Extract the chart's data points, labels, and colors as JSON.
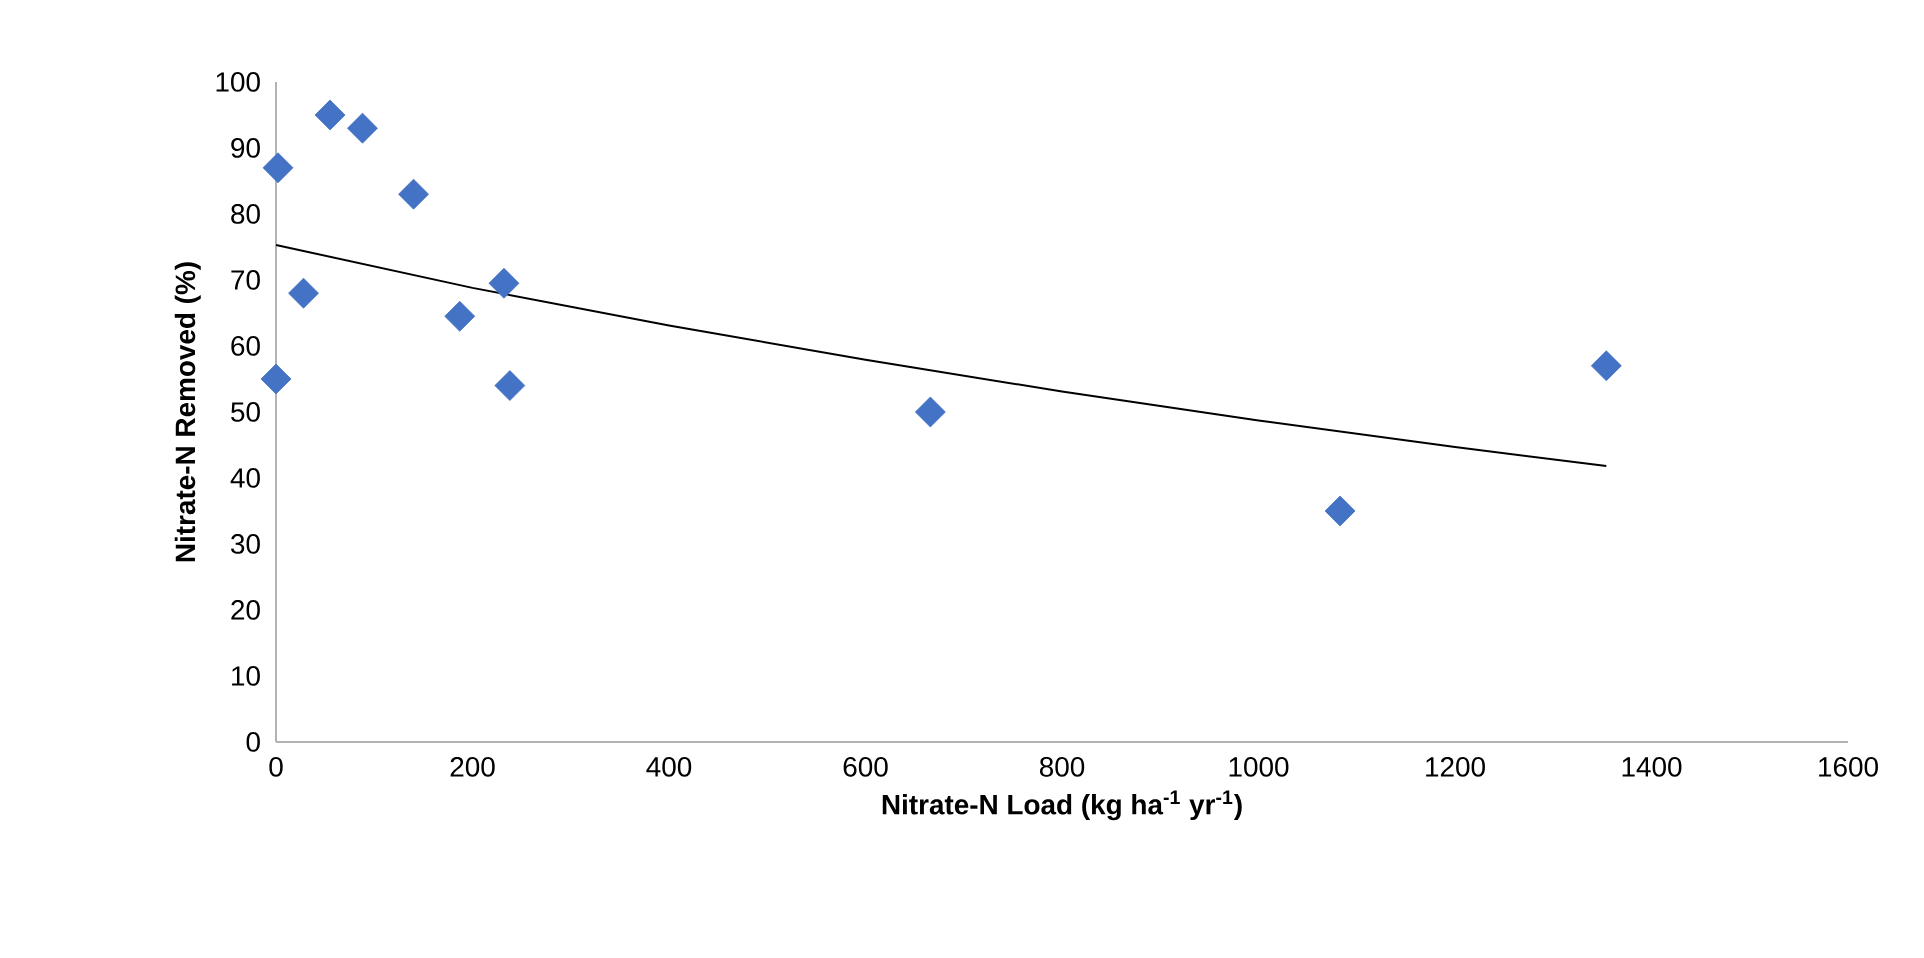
{
  "chart_data": {
    "type": "scatter",
    "xlabel": "Nitrate-N Load (kg ha$^{-1}$ yr$^{-1}$)",
    "ylabel": "Nitrate-N Removed (%)",
    "xlim": [
      0,
      1600
    ],
    "xticks": [
      0,
      200,
      400,
      600,
      800,
      1000,
      1200,
      1400,
      1600
    ],
    "ylim": [
      0,
      100
    ],
    "yticks": [
      0,
      10,
      20,
      30,
      40,
      50,
      60,
      70,
      80,
      90,
      100
    ],
    "grid": false,
    "series": [
      {
        "color": "#4472c4",
        "marker": "diamond",
        "x": [
          0,
          2,
          28,
          55,
          88,
          140,
          187,
          232,
          238,
          666,
          1083,
          1354
        ],
        "values": [
          55,
          87,
          68,
          95,
          93,
          83,
          64.5,
          69.5,
          54,
          50,
          35,
          57
        ]
      },
      {
        "type": "line",
        "color": "#000000",
        "marker": "none",
        "line_style": "solid",
        "x": [
          0,
          200,
          400,
          600,
          800,
          1000,
          1200,
          1354
        ],
        "values": [
          75.3,
          68.8,
          63.1,
          57.9,
          53.1,
          48.7,
          44.7,
          41.8
        ]
      }
    ]
  }
}
